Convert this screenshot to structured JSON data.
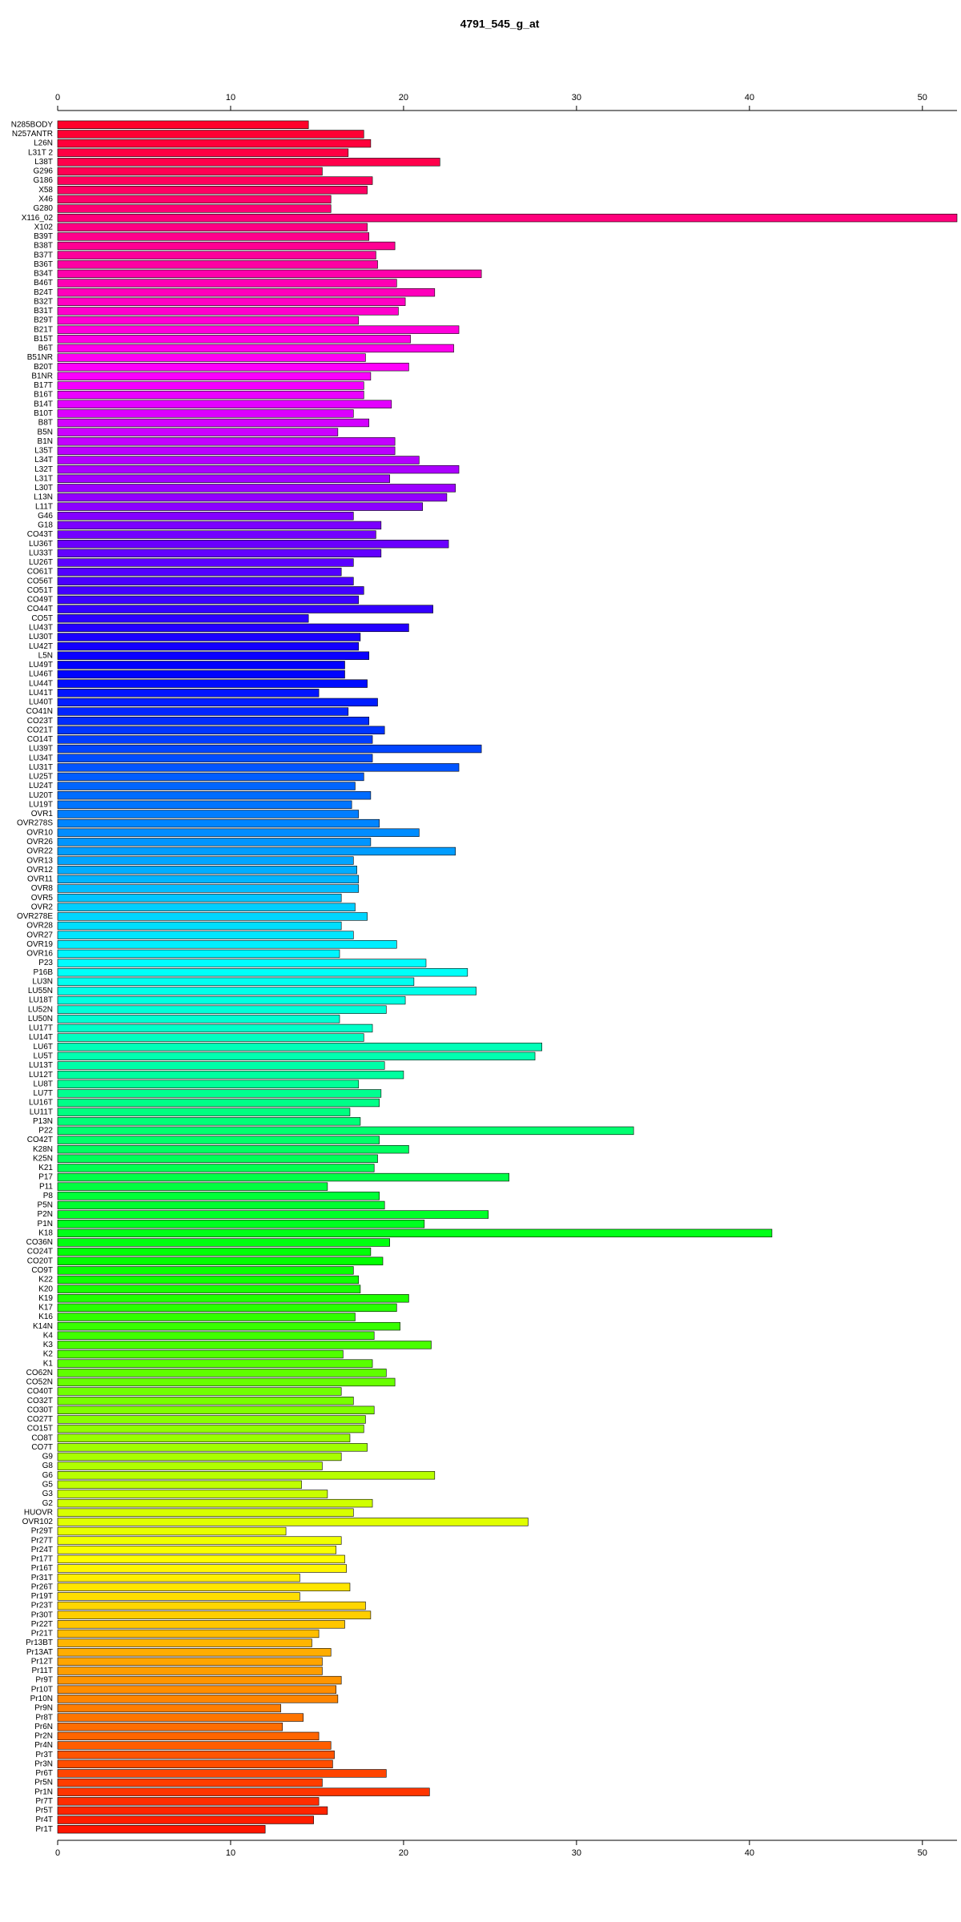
{
  "chart_data": {
    "type": "barh",
    "title": "4791_545_g_at",
    "categories": [
      "N285BODY",
      "N257ANTR",
      "L26N",
      "L31T 2",
      "L38T",
      "G296",
      "G186",
      "X58",
      "X46",
      "G280",
      "X116_02",
      "X102",
      "B39T",
      "B38T",
      "B37T",
      "B36T",
      "B34T",
      "B46T",
      "B24T",
      "B32T",
      "B31T",
      "B29T",
      "B21T",
      "B15T",
      "B6T",
      "B51NR",
      "B20T",
      "B1NR",
      "B17T",
      "B16T",
      "B14T",
      "B10T",
      "B8T",
      "B5N",
      "B1N",
      "L35T",
      "L34T",
      "L32T",
      "L31T",
      "L30T",
      "L13N",
      "L11T",
      "G46",
      "G18",
      "CO43T",
      "LU36T",
      "LU33T",
      "LU26T",
      "CO61T",
      "CO56T",
      "CO51T",
      "CO49T",
      "CO44T",
      "CO5T",
      "LU43T",
      "LU30T",
      "LU42T",
      "L5N",
      "LU49T",
      "LU46T",
      "LU44T",
      "LU41T",
      "LU40T",
      "CO41N",
      "CO23T",
      "CO21T",
      "CO14T",
      "LU39T",
      "LU34T",
      "LU31T",
      "LU25T",
      "LU24T",
      "LU20T",
      "LU19T",
      "OVR1",
      "OVR278S",
      "OVR10",
      "OVR26",
      "OVR22",
      "OVR13",
      "OVR12",
      "OVR11",
      "OVR8",
      "OVR5",
      "OVR2",
      "OVR278E",
      "OVR28",
      "OVR27",
      "OVR19",
      "OVR16",
      "P23",
      "P16B",
      "LU3N",
      "LU55N",
      "LU18T",
      "LU52N",
      "LU50N",
      "LU17T",
      "LU14T",
      "LU6T",
      "LU5T",
      "LU13T",
      "LU12T",
      "LU8T",
      "LU7T",
      "LU16T",
      "LU11T",
      "P13N",
      "P22",
      "CO42T",
      "K28N",
      "K25N",
      "K21",
      "P17",
      "P11",
      "P8",
      "P5N",
      "P2N",
      "P1N",
      "K18",
      "CO36N",
      "CO24T",
      "CO20T",
      "CO9T",
      "K22",
      "K20",
      "K19",
      "K17",
      "K16",
      "K14N",
      "K4",
      "K3",
      "K2",
      "K1",
      "CO62N",
      "CO52N",
      "CO40T",
      "CO32T",
      "CO30T",
      "CO27T",
      "CO15T",
      "CO8T",
      "CO7T",
      "G9",
      "G8",
      "G6",
      "G5",
      "G3",
      "G2",
      "HUOVR",
      "OVR102",
      "Pr29T",
      "Pr27T",
      "Pr24T",
      "Pr17T",
      "Pr16T",
      "Pr31T",
      "Pr26T",
      "Pr19T",
      "Pr23T",
      "Pr30T",
      "Pr22T",
      "Pr21T",
      "Pr13BT",
      "Pr13AT",
      "Pr12T",
      "Pr11T",
      "Pr9T",
      "Pr10T",
      "Pr10N",
      "Pr9N",
      "Pr8T",
      "Pr6N",
      "Pr2N",
      "Pr4N",
      "Pr3T",
      "Pr3N",
      "Pr6T",
      "Pr5N",
      "Pr1N",
      "Pr7T",
      "Pr5T",
      "Pr4T",
      "Pr1T"
    ],
    "values": [
      14.5,
      17.7,
      18.1,
      16.8,
      22.1,
      15.3,
      18.2,
      17.9,
      15.8,
      15.8,
      52,
      17.9,
      18.0,
      19.5,
      18.4,
      18.5,
      24.5,
      19.6,
      21.8,
      20.1,
      19.7,
      17.4,
      23.2,
      20.4,
      22.9,
      17.8,
      20.3,
      18.1,
      17.7,
      17.7,
      19.3,
      17.1,
      18.0,
      16.2,
      19.5,
      19.5,
      20.9,
      23.2,
      19.2,
      23.0,
      22.5,
      21.1,
      17.1,
      18.7,
      18.4,
      22.6,
      18.7,
      17.1,
      16.4,
      17.1,
      17.7,
      17.4,
      21.7,
      14.5,
      20.3,
      17.5,
      17.4,
      18.0,
      16.6,
      16.6,
      17.9,
      15.1,
      18.5,
      16.8,
      18.0,
      18.9,
      18.2,
      24.5,
      18.2,
      23.2,
      17.7,
      17.2,
      18.1,
      17.0,
      17.4,
      18.6,
      20.9,
      18.1,
      23.0,
      17.1,
      17.3,
      17.4,
      17.4,
      16.4,
      17.2,
      17.9,
      16.4,
      17.1,
      19.6,
      16.3,
      21.3,
      23.7,
      20.6,
      24.2,
      20.1,
      19.0,
      16.3,
      18.2,
      17.7,
      28.0,
      27.6,
      18.9,
      20.0,
      17.4,
      18.7,
      18.6,
      16.9,
      17.5,
      33.3,
      18.6,
      20.3,
      18.5,
      18.3,
      26.1,
      15.6,
      18.6,
      18.9,
      24.9,
      21.2,
      41.3,
      19.2,
      18.1,
      18.8,
      17.1,
      17.4,
      17.5,
      20.3,
      19.6,
      17.2,
      19.8,
      18.3,
      21.6,
      16.5,
      18.2,
      19.0,
      19.5,
      16.4,
      17.1,
      18.3,
      17.8,
      17.7,
      16.9,
      17.9,
      16.4,
      15.3,
      21.8,
      14.1,
      15.6,
      18.2,
      17.1,
      27.2,
      13.2,
      16.4,
      16.1,
      16.6,
      16.7,
      14.0,
      16.9,
      14.0,
      17.8,
      18.1,
      16.6,
      15.1,
      14.7,
      15.8,
      15.3,
      15.3,
      16.4,
      16.1,
      16.2,
      12.9,
      14.2,
      13.0,
      15.1,
      15.8,
      16.0,
      15.9,
      19.0,
      15.3,
      21.5,
      15.1,
      15.6,
      14.8,
      12.0
    ],
    "color_hue_range": [
      350,
      5
    ],
    "xlim": [
      0,
      52
    ],
    "xticks": [
      0,
      10,
      20,
      30,
      40,
      50
    ]
  }
}
